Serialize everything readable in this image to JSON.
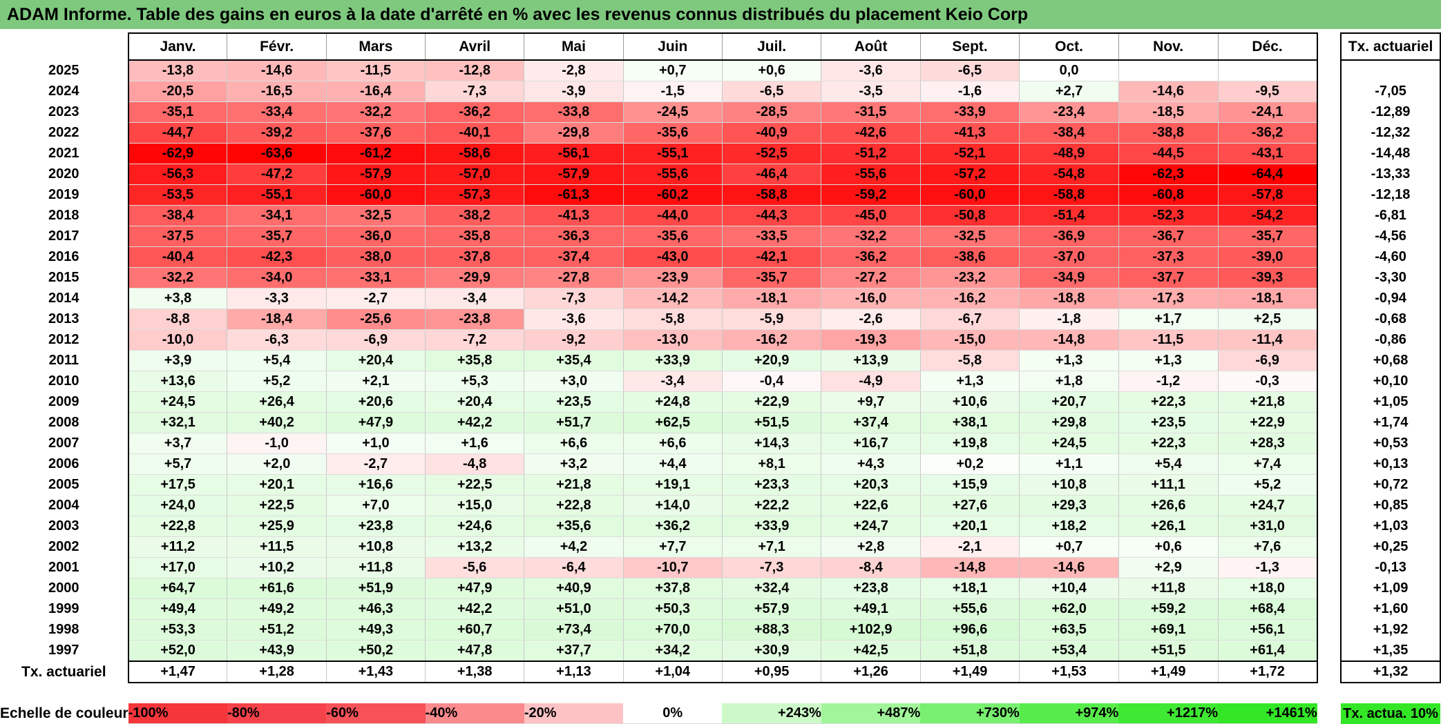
{
  "title": "ADAM Informe. Table des gains en euros à la date d'arrêté en % avec les revenus connus distribués du placement Keio Corp",
  "months": [
    "Janv.",
    "Févr.",
    "Mars",
    "Avril",
    "Mai",
    "Juin",
    "Juil.",
    "Août",
    "Sept.",
    "Oct.",
    "Nov.",
    "Déc."
  ],
  "annual_header": "Tx. actuariel",
  "rows": [
    {
      "year": "2025",
      "values": [
        "-13,8",
        "-14,6",
        "-11,5",
        "-12,8",
        "-2,8",
        "+0,7",
        "+0,6",
        "-3,6",
        "-6,5",
        "0,0",
        "",
        ""
      ],
      "annual": ""
    },
    {
      "year": "2024",
      "values": [
        "-20,5",
        "-16,5",
        "-16,4",
        "-7,3",
        "-3,9",
        "-1,5",
        "-6,5",
        "-3,5",
        "-1,6",
        "+2,7",
        "-14,6",
        "-9,5"
      ],
      "annual": "-7,05"
    },
    {
      "year": "2023",
      "values": [
        "-35,1",
        "-33,4",
        "-32,2",
        "-36,2",
        "-33,8",
        "-24,5",
        "-28,5",
        "-31,5",
        "-33,9",
        "-23,4",
        "-18,5",
        "-24,1"
      ],
      "annual": "-12,89"
    },
    {
      "year": "2022",
      "values": [
        "-44,7",
        "-39,2",
        "-37,6",
        "-40,1",
        "-29,8",
        "-35,6",
        "-40,9",
        "-42,6",
        "-41,3",
        "-38,4",
        "-38,8",
        "-36,2"
      ],
      "annual": "-12,32"
    },
    {
      "year": "2021",
      "values": [
        "-62,9",
        "-63,6",
        "-61,2",
        "-58,6",
        "-56,1",
        "-55,1",
        "-52,5",
        "-51,2",
        "-52,1",
        "-48,9",
        "-44,5",
        "-43,1"
      ],
      "annual": "-14,48"
    },
    {
      "year": "2020",
      "values": [
        "-56,3",
        "-47,2",
        "-57,9",
        "-57,0",
        "-57,9",
        "-55,6",
        "-46,4",
        "-55,6",
        "-57,2",
        "-54,8",
        "-62,3",
        "-64,4"
      ],
      "annual": "-13,33"
    },
    {
      "year": "2019",
      "values": [
        "-53,5",
        "-55,1",
        "-60,0",
        "-57,3",
        "-61,3",
        "-60,2",
        "-58,8",
        "-59,2",
        "-60,0",
        "-58,8",
        "-60,8",
        "-57,8"
      ],
      "annual": "-12,18"
    },
    {
      "year": "2018",
      "values": [
        "-38,4",
        "-34,1",
        "-32,5",
        "-38,2",
        "-41,3",
        "-44,0",
        "-44,3",
        "-45,0",
        "-50,8",
        "-51,4",
        "-52,3",
        "-54,2"
      ],
      "annual": "-6,81"
    },
    {
      "year": "2017",
      "values": [
        "-37,5",
        "-35,7",
        "-36,0",
        "-35,8",
        "-36,3",
        "-35,6",
        "-33,5",
        "-32,2",
        "-32,5",
        "-36,9",
        "-36,7",
        "-35,7"
      ],
      "annual": "-4,56"
    },
    {
      "year": "2016",
      "values": [
        "-40,4",
        "-42,3",
        "-38,0",
        "-37,8",
        "-37,4",
        "-43,0",
        "-42,1",
        "-36,2",
        "-38,6",
        "-37,0",
        "-37,3",
        "-39,0"
      ],
      "annual": "-4,60"
    },
    {
      "year": "2015",
      "values": [
        "-32,2",
        "-34,0",
        "-33,1",
        "-29,9",
        "-27,8",
        "-23,9",
        "-35,7",
        "-27,2",
        "-23,2",
        "-34,9",
        "-37,7",
        "-39,3"
      ],
      "annual": "-3,30"
    },
    {
      "year": "2014",
      "values": [
        "+3,8",
        "-3,3",
        "-2,7",
        "-3,4",
        "-7,3",
        "-14,2",
        "-18,1",
        "-16,0",
        "-16,2",
        "-18,8",
        "-17,3",
        "-18,1"
      ],
      "annual": "-0,94"
    },
    {
      "year": "2013",
      "values": [
        "-8,8",
        "-18,4",
        "-25,6",
        "-23,8",
        "-3,6",
        "-5,8",
        "-5,9",
        "-2,6",
        "-6,7",
        "-1,8",
        "+1,7",
        "+2,5"
      ],
      "annual": "-0,68"
    },
    {
      "year": "2012",
      "values": [
        "-10,0",
        "-6,3",
        "-6,9",
        "-7,2",
        "-9,2",
        "-13,0",
        "-16,2",
        "-19,3",
        "-15,0",
        "-14,8",
        "-11,5",
        "-11,4"
      ],
      "annual": "-0,86"
    },
    {
      "year": "2011",
      "values": [
        "+3,9",
        "+5,4",
        "+20,4",
        "+35,8",
        "+35,4",
        "+33,9",
        "+20,9",
        "+13,9",
        "-5,8",
        "+1,3",
        "+1,3",
        "-6,9"
      ],
      "annual": "+0,68"
    },
    {
      "year": "2010",
      "values": [
        "+13,6",
        "+5,2",
        "+2,1",
        "+5,3",
        "+3,0",
        "-3,4",
        "-0,4",
        "-4,9",
        "+1,3",
        "+1,8",
        "-1,2",
        "-0,3"
      ],
      "annual": "+0,10"
    },
    {
      "year": "2009",
      "values": [
        "+24,5",
        "+26,4",
        "+20,6",
        "+20,4",
        "+23,5",
        "+24,8",
        "+22,9",
        "+9,7",
        "+10,6",
        "+20,7",
        "+22,3",
        "+21,8"
      ],
      "annual": "+1,05"
    },
    {
      "year": "2008",
      "values": [
        "+32,1",
        "+40,2",
        "+47,9",
        "+42,2",
        "+51,7",
        "+62,5",
        "+51,5",
        "+37,4",
        "+38,1",
        "+29,8",
        "+23,5",
        "+22,9"
      ],
      "annual": "+1,74"
    },
    {
      "year": "2007",
      "values": [
        "+3,7",
        "-1,0",
        "+1,0",
        "+1,6",
        "+6,6",
        "+6,6",
        "+14,3",
        "+16,7",
        "+19,8",
        "+24,5",
        "+22,3",
        "+28,3"
      ],
      "annual": "+0,53"
    },
    {
      "year": "2006",
      "values": [
        "+5,7",
        "+2,0",
        "-2,7",
        "-4,8",
        "+3,2",
        "+4,4",
        "+8,1",
        "+4,3",
        "+0,2",
        "+1,1",
        "+5,4",
        "+7,4"
      ],
      "annual": "+0,13"
    },
    {
      "year": "2005",
      "values": [
        "+17,5",
        "+20,1",
        "+16,6",
        "+22,5",
        "+21,8",
        "+19,1",
        "+23,3",
        "+20,3",
        "+15,9",
        "+10,8",
        "+11,1",
        "+5,2"
      ],
      "annual": "+0,72"
    },
    {
      "year": "2004",
      "values": [
        "+24,0",
        "+22,5",
        "+7,0",
        "+15,0",
        "+22,8",
        "+14,0",
        "+22,2",
        "+22,6",
        "+27,6",
        "+29,3",
        "+26,6",
        "+24,7"
      ],
      "annual": "+0,85"
    },
    {
      "year": "2003",
      "values": [
        "+22,8",
        "+25,9",
        "+23,8",
        "+24,6",
        "+35,6",
        "+36,2",
        "+33,9",
        "+24,7",
        "+20,1",
        "+18,2",
        "+26,1",
        "+31,0"
      ],
      "annual": "+1,03"
    },
    {
      "year": "2002",
      "values": [
        "+11,2",
        "+11,5",
        "+10,8",
        "+13,2",
        "+4,2",
        "+7,7",
        "+7,1",
        "+2,8",
        "-2,1",
        "+0,7",
        "+0,6",
        "+7,6"
      ],
      "annual": "+0,25"
    },
    {
      "year": "2001",
      "values": [
        "+17,0",
        "+10,2",
        "+11,8",
        "-5,6",
        "-6,4",
        "-10,7",
        "-7,3",
        "-8,4",
        "-14,8",
        "-14,6",
        "+2,9",
        "-1,3"
      ],
      "annual": "-0,13"
    },
    {
      "year": "2000",
      "values": [
        "+64,7",
        "+61,6",
        "+51,9",
        "+47,9",
        "+40,9",
        "+37,8",
        "+32,4",
        "+23,8",
        "+18,1",
        "+10,4",
        "+11,8",
        "+18,0"
      ],
      "annual": "+1,09"
    },
    {
      "year": "1999",
      "values": [
        "+49,4",
        "+49,2",
        "+46,3",
        "+42,2",
        "+51,0",
        "+50,3",
        "+57,9",
        "+49,1",
        "+55,6",
        "+62,0",
        "+59,2",
        "+68,4"
      ],
      "annual": "+1,60"
    },
    {
      "year": "1998",
      "values": [
        "+53,3",
        "+51,2",
        "+49,3",
        "+60,7",
        "+73,4",
        "+70,0",
        "+88,3",
        "+102,9",
        "+96,6",
        "+63,5",
        "+69,1",
        "+56,1"
      ],
      "annual": "+1,92"
    },
    {
      "year": "1997",
      "values": [
        "+52,0",
        "+43,9",
        "+50,2",
        "+47,8",
        "+37,7",
        "+34,2",
        "+30,9",
        "+42,5",
        "+51,8",
        "+53,4",
        "+51,5",
        "+61,4"
      ],
      "annual": "+1,35"
    }
  ],
  "tx_row": {
    "label": "Tx. actuariel",
    "values": [
      "+1,47",
      "+1,28",
      "+1,43",
      "+1,38",
      "+1,13",
      "+1,04",
      "+0,95",
      "+1,26",
      "+1,49",
      "+1,53",
      "+1,49",
      "+1,72"
    ],
    "annual": "+1,32"
  },
  "legend": {
    "label": "Echelle de couleur",
    "items": [
      {
        "text": "-100%",
        "color": "#f5363b",
        "align": "left"
      },
      {
        "text": "-80%",
        "color": "#f6424a",
        "align": "left"
      },
      {
        "text": "-60%",
        "color": "#f85259",
        "align": "left"
      },
      {
        "text": "-40%",
        "color": "#fb8a8d",
        "align": "left"
      },
      {
        "text": "-20%",
        "color": "#fdc2c4",
        "align": "left"
      },
      {
        "text": "0%",
        "color": "#ffffff",
        "align": "center"
      },
      {
        "text": "+243%",
        "color": "#cdf9c9",
        "align": "right"
      },
      {
        "text": "+487%",
        "color": "#a1f59a",
        "align": "right"
      },
      {
        "text": "+730%",
        "color": "#79f070",
        "align": "right"
      },
      {
        "text": "+974%",
        "color": "#57ec4c",
        "align": "right"
      },
      {
        "text": "+1217%",
        "color": "#3fe832",
        "align": "right"
      },
      {
        "text": "+1461%",
        "color": "#33e626",
        "align": "right"
      }
    ],
    "annual_text": "Tx. actua. 10%",
    "annual_color": "#33e626"
  },
  "colors": {
    "title_bg": "#7ec97e",
    "neg_max": "#ff0000",
    "pos_max": "#33e626"
  }
}
